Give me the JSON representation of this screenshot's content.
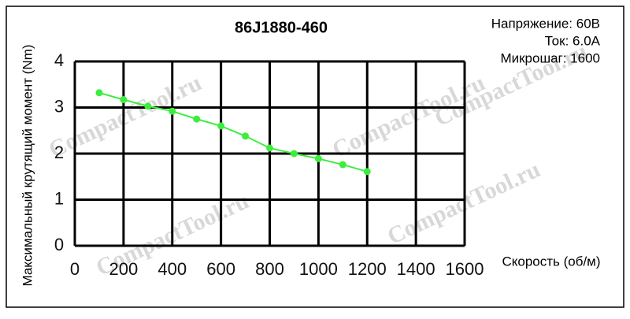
{
  "chart_data": {
    "type": "line",
    "title": "86J1880-460",
    "annotations": [
      "Напряжение: 60В",
      "Ток: 6.0A",
      "Микрошаг: 1600"
    ],
    "watermark": "CompactTool.ru",
    "x_label": "Скорость (об/м)",
    "y_label": "Максимальный крутящий момент (Nm)",
    "x": [
      100,
      200,
      300,
      400,
      500,
      600,
      700,
      800,
      900,
      1000,
      1100,
      1200
    ],
    "values": [
      3.32,
      3.17,
      3.03,
      2.92,
      2.75,
      2.6,
      2.38,
      2.12,
      2.0,
      1.89,
      1.76,
      1.61
    ],
    "color": "#3ded3d",
    "xlim": [
      0,
      1600
    ],
    "xticks": [
      0,
      200,
      400,
      600,
      800,
      1000,
      1200,
      1400,
      1600
    ],
    "ylim": [
      0,
      4
    ],
    "yticks": [
      0,
      1,
      2,
      3,
      4
    ],
    "grid": true
  }
}
